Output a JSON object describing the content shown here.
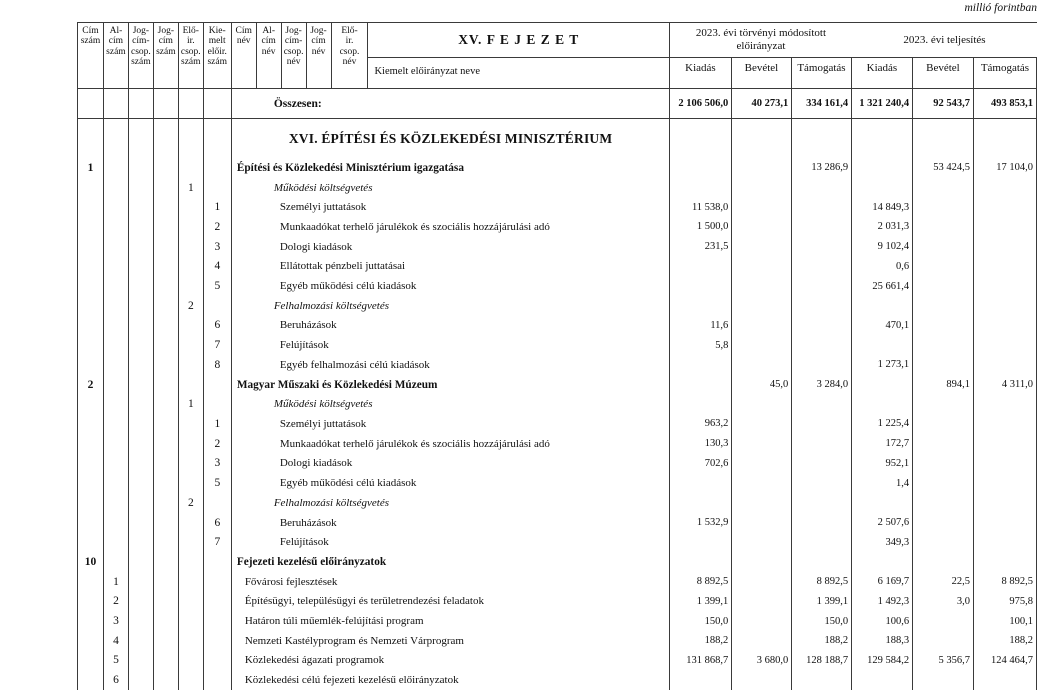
{
  "meta": {
    "unit_note": "millió forintban"
  },
  "header": {
    "num_cols": [
      "Cím\nszám",
      "Al-\ncím\nszám",
      "Jog-\ncím-\ncsop.\nszám",
      "Jog-\ncím\nszám",
      "Elő-\nir.\ncsop.\nszám",
      "Kie-\nmelt\nelőir.\nszám"
    ],
    "name_cols": [
      "Cím\nnév",
      "Al-\ncím\nnév",
      "Jog-\ncím-\ncsop.\nnév",
      "Jog-\ncím\nnév",
      "Elő-\nir.\ncsop.\nnév"
    ],
    "chapter": "XV. F E J E Z E T",
    "row_label": "Kiemelt előirányzat neve",
    "group1": "2023. évi törvényi módosított előirányzat",
    "group2": "2023. évi teljesítés",
    "cols": [
      "Kiadás",
      "Bevétel",
      "Támogatás",
      "Kiadás",
      "Bevétel",
      "Támogatás"
    ]
  },
  "totals": {
    "label": "Összesen:",
    "values": [
      "2 106 506,0",
      "40 273,1",
      "334 161,4",
      "1 321 240,4",
      "92 543,7",
      "493 853,1"
    ]
  },
  "section_title": "XVI. ÉPÍTÉSI ÉS KÖZLEKEDÉSI MINISZTÉRIUM",
  "rows": [
    {
      "nums": [
        "1",
        "",
        "",
        "",
        "",
        ""
      ],
      "style": "title",
      "name": "Építési és Közlekedési Minisztérium igazgatása",
      "vals": [
        "",
        "",
        "13 286,9",
        "",
        "53 424,5",
        "17 104,0"
      ]
    },
    {
      "nums": [
        "",
        "",
        "",
        "",
        "1",
        ""
      ],
      "style": "group",
      "name": "Működési költségvetés",
      "vals": [
        "",
        "",
        "",
        "",
        "",
        ""
      ]
    },
    {
      "nums": [
        "",
        "",
        "",
        "",
        "",
        "1"
      ],
      "style": "item",
      "name": "Személyi juttatások",
      "vals": [
        "11 538,0",
        "",
        "",
        "14 849,3",
        "",
        ""
      ]
    },
    {
      "nums": [
        "",
        "",
        "",
        "",
        "",
        "2"
      ],
      "style": "item",
      "name": "Munkaadókat terhelő járulékok és szociális hozzájárulási adó",
      "vals": [
        "1 500,0",
        "",
        "",
        "2 031,3",
        "",
        ""
      ]
    },
    {
      "nums": [
        "",
        "",
        "",
        "",
        "",
        "3"
      ],
      "style": "item",
      "name": "Dologi kiadások",
      "vals": [
        "231,5",
        "",
        "",
        "9 102,4",
        "",
        ""
      ]
    },
    {
      "nums": [
        "",
        "",
        "",
        "",
        "",
        "4"
      ],
      "style": "item",
      "name": "Ellátottak pénzbeli juttatásai",
      "vals": [
        "",
        "",
        "",
        "0,6",
        "",
        ""
      ]
    },
    {
      "nums": [
        "",
        "",
        "",
        "",
        "",
        "5"
      ],
      "style": "item",
      "name": "Egyéb működési célú kiadások",
      "vals": [
        "",
        "",
        "",
        "25 661,4",
        "",
        ""
      ]
    },
    {
      "nums": [
        "",
        "",
        "",
        "",
        "2",
        ""
      ],
      "style": "group",
      "name": "Felhalmozási költségvetés",
      "vals": [
        "",
        "",
        "",
        "",
        "",
        ""
      ]
    },
    {
      "nums": [
        "",
        "",
        "",
        "",
        "",
        "6"
      ],
      "style": "item",
      "name": "Beruházások",
      "vals": [
        "11,6",
        "",
        "",
        "470,1",
        "",
        ""
      ]
    },
    {
      "nums": [
        "",
        "",
        "",
        "",
        "",
        "7"
      ],
      "style": "item",
      "name": "Felújítások",
      "vals": [
        "5,8",
        "",
        "",
        "",
        "",
        ""
      ]
    },
    {
      "nums": [
        "",
        "",
        "",
        "",
        "",
        "8"
      ],
      "style": "item",
      "name": "Egyéb felhalmozási célú kiadások",
      "vals": [
        "",
        "",
        "",
        "1 273,1",
        "",
        ""
      ]
    },
    {
      "nums": [
        "2",
        "",
        "",
        "",
        "",
        ""
      ],
      "style": "title",
      "name": "Magyar Műszaki és Közlekedési Múzeum",
      "vals": [
        "",
        "45,0",
        "3 284,0",
        "",
        "894,1",
        "4 311,0"
      ]
    },
    {
      "nums": [
        "",
        "",
        "",
        "",
        "1",
        ""
      ],
      "style": "group",
      "name": "Működési költségvetés",
      "vals": [
        "",
        "",
        "",
        "",
        "",
        ""
      ]
    },
    {
      "nums": [
        "",
        "",
        "",
        "",
        "",
        "1"
      ],
      "style": "item",
      "name": "Személyi juttatások",
      "vals": [
        "963,2",
        "",
        "",
        "1 225,4",
        "",
        ""
      ]
    },
    {
      "nums": [
        "",
        "",
        "",
        "",
        "",
        "2"
      ],
      "style": "item",
      "name": "Munkaadókat terhelő járulékok és szociális hozzájárulási adó",
      "vals": [
        "130,3",
        "",
        "",
        "172,7",
        "",
        ""
      ]
    },
    {
      "nums": [
        "",
        "",
        "",
        "",
        "",
        "3"
      ],
      "style": "item",
      "name": "Dologi kiadások",
      "vals": [
        "702,6",
        "",
        "",
        "952,1",
        "",
        ""
      ]
    },
    {
      "nums": [
        "",
        "",
        "",
        "",
        "",
        "5"
      ],
      "style": "item",
      "name": "Egyéb működési célú kiadások",
      "vals": [
        "",
        "",
        "",
        "1,4",
        "",
        ""
      ]
    },
    {
      "nums": [
        "",
        "",
        "",
        "",
        "2",
        ""
      ],
      "style": "group",
      "name": "Felhalmozási költségvetés",
      "vals": [
        "",
        "",
        "",
        "",
        "",
        ""
      ]
    },
    {
      "nums": [
        "",
        "",
        "",
        "",
        "",
        "6"
      ],
      "style": "item",
      "name": "Beruházások",
      "vals": [
        "1 532,9",
        "",
        "",
        "2 507,6",
        "",
        ""
      ]
    },
    {
      "nums": [
        "",
        "",
        "",
        "",
        "",
        "7"
      ],
      "style": "item",
      "name": "Felújítások",
      "vals": [
        "",
        "",
        "",
        "349,3",
        "",
        ""
      ]
    },
    {
      "nums": [
        "10",
        "",
        "",
        "",
        "",
        ""
      ],
      "style": "title",
      "name": "Fejezeti kezelésű előirányzatok",
      "vals": [
        "",
        "",
        "",
        "",
        "",
        ""
      ]
    },
    {
      "nums": [
        "",
        "1",
        "",
        "",
        "",
        ""
      ],
      "style": "sub",
      "name": "Fővárosi fejlesztések",
      "vals": [
        "8 892,5",
        "",
        "8 892,5",
        "6 169,7",
        "22,5",
        "8 892,5"
      ]
    },
    {
      "nums": [
        "",
        "2",
        "",
        "",
        "",
        ""
      ],
      "style": "sub",
      "name": "Építésügyi, településügyi és területrendezési feladatok",
      "vals": [
        "1 399,1",
        "",
        "1 399,1",
        "1 492,3",
        "3,0",
        "975,8"
      ]
    },
    {
      "nums": [
        "",
        "3",
        "",
        "",
        "",
        ""
      ],
      "style": "sub",
      "name": "Határon túli műemlék-felújítási program",
      "vals": [
        "150,0",
        "",
        "150,0",
        "100,6",
        "",
        "100,1"
      ]
    },
    {
      "nums": [
        "",
        "4",
        "",
        "",
        "",
        ""
      ],
      "style": "sub",
      "name": "Nemzeti Kastélyprogram és Nemzeti Várprogram",
      "vals": [
        "188,2",
        "",
        "188,2",
        "188,3",
        "",
        "188,2"
      ]
    },
    {
      "nums": [
        "",
        "5",
        "",
        "",
        "",
        ""
      ],
      "style": "sub",
      "name": "Közlekedési ágazati programok",
      "vals": [
        "131 868,7",
        "3 680,0",
        "128 188,7",
        "129 584,2",
        "5 356,7",
        "124 464,7"
      ]
    },
    {
      "nums": [
        "",
        "6",
        "",
        "",
        "",
        ""
      ],
      "style": "sub",
      "name": "Közlekedési célú fejezeti kezelésű előirányzatok",
      "vals": [
        "",
        "",
        "",
        "",
        "",
        ""
      ]
    }
  ]
}
